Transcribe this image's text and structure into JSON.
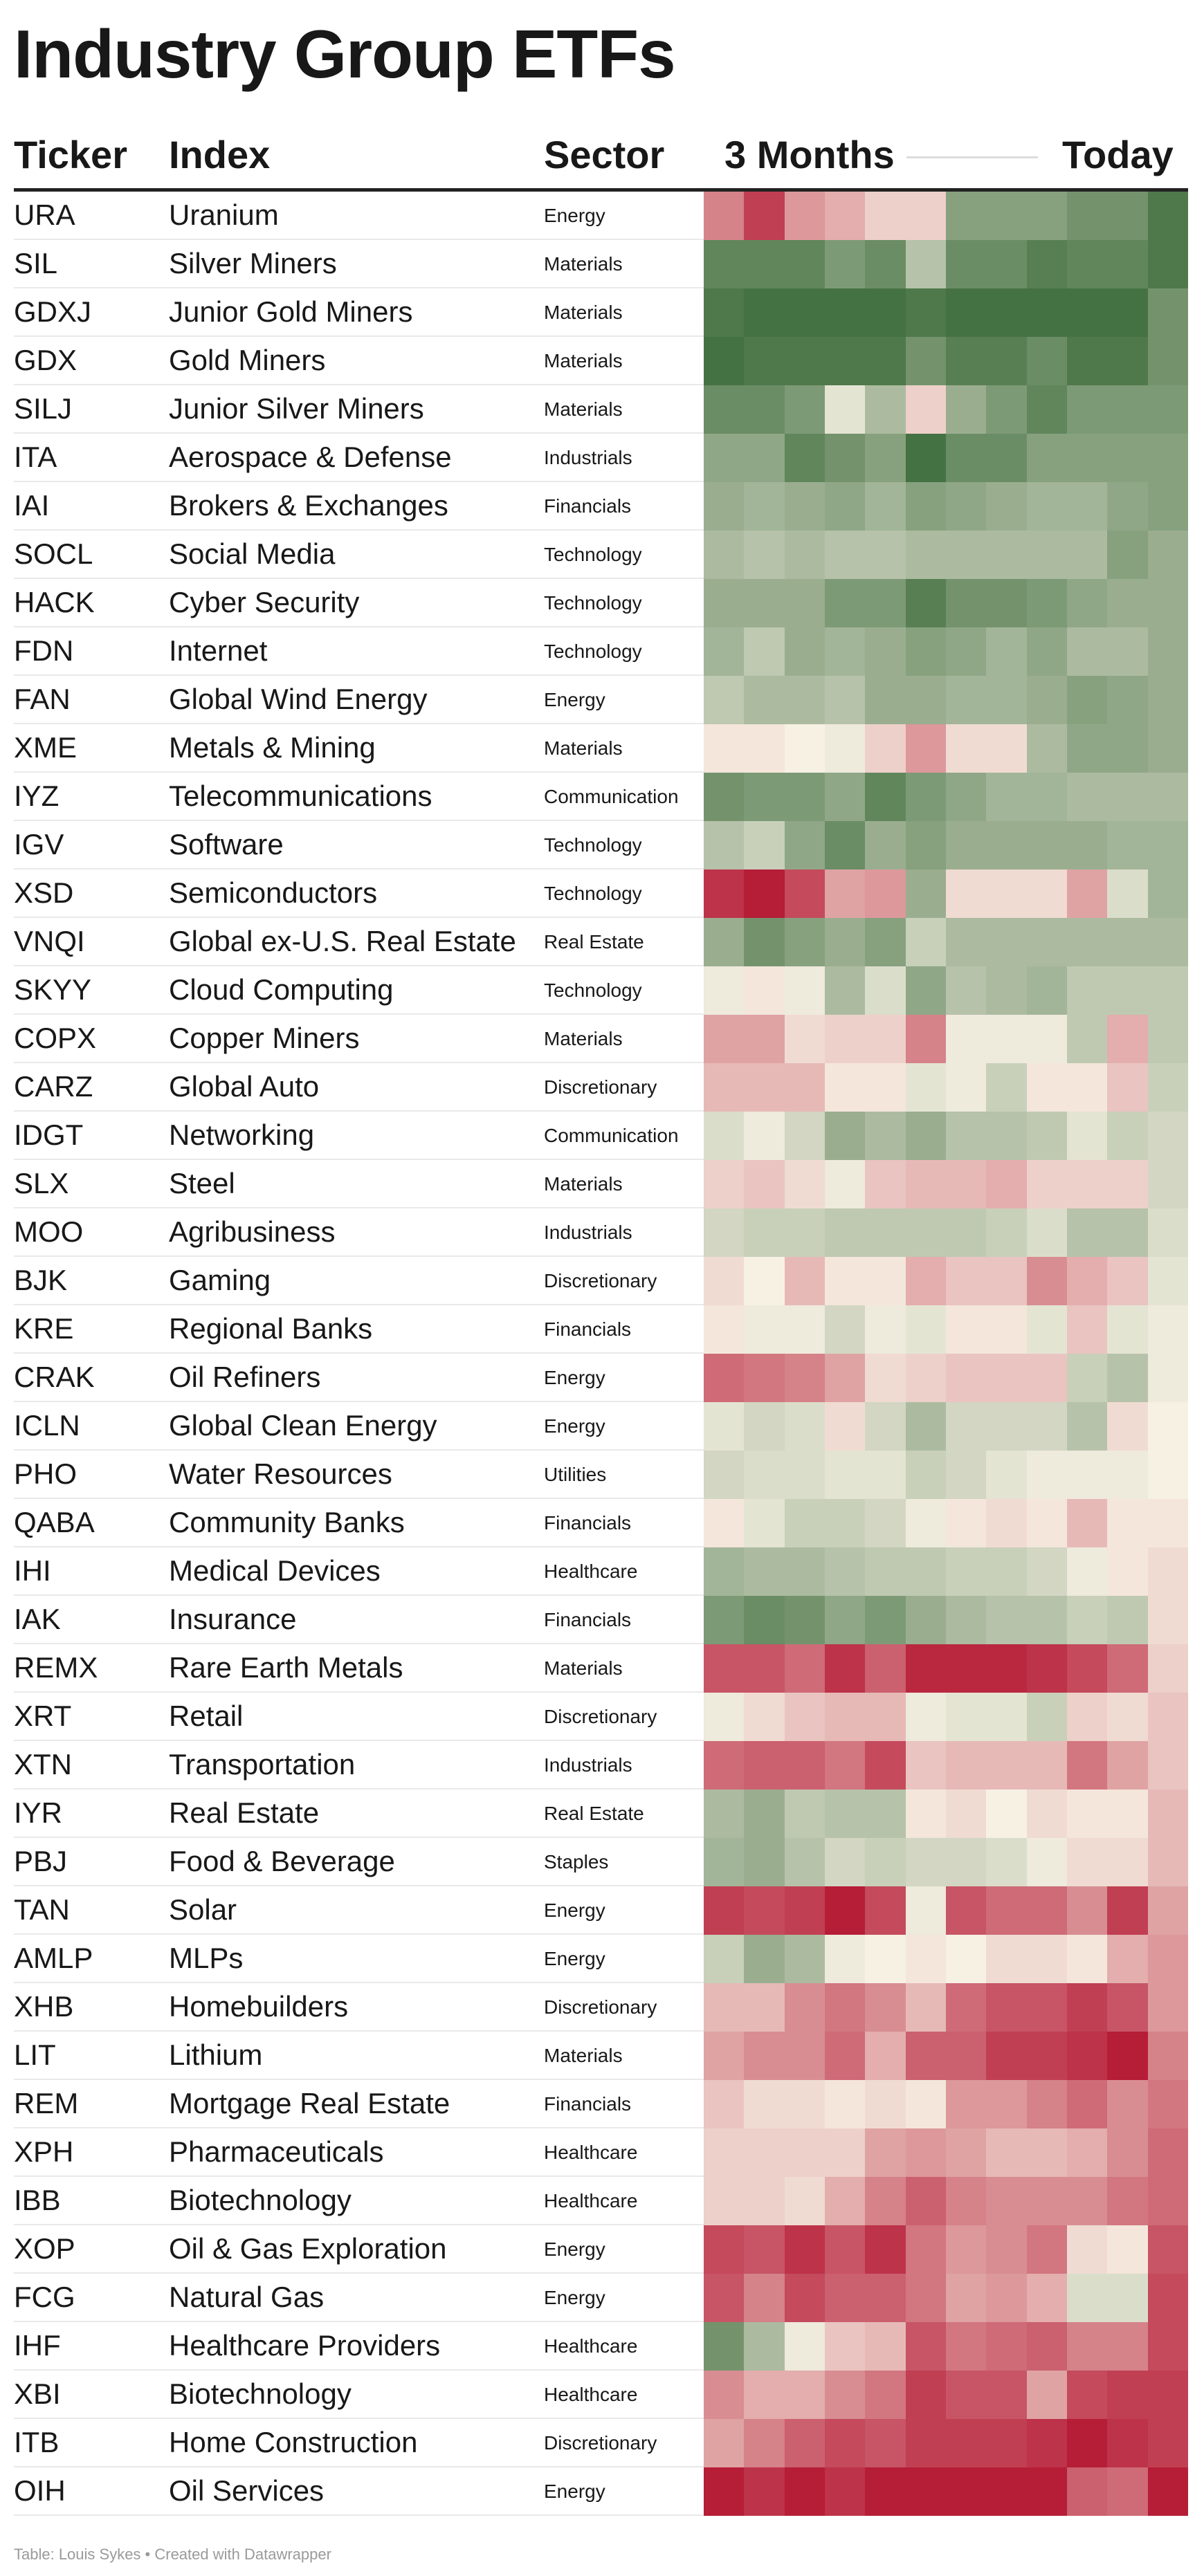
{
  "title": "Industry Group ETFs",
  "headers": {
    "ticker": "Ticker",
    "index": "Index",
    "sector": "Sector",
    "start": "3 Months",
    "end": "Today"
  },
  "footer": "Table: Louis Sykes • Created with Datawrapper",
  "color_scale": {
    "red": "#b3122e",
    "neutral": "#f7f1e4",
    "green": "#3c6b3a"
  },
  "chart_data": {
    "type": "heatmap",
    "columns_note": "12 periods from 3 Months ago to Today; values are relative-strength scores from -100 (deep red) to 100 (deep green)",
    "rows": [
      {
        "ticker": "URA",
        "index": "Uranium",
        "sector": "Energy",
        "values": [
          -50,
          -80,
          -40,
          -30,
          -15,
          -15,
          60,
          60,
          60,
          70,
          70,
          90
        ]
      },
      {
        "ticker": "SIL",
        "index": "Silver Miners",
        "sector": "Materials",
        "values": [
          80,
          80,
          80,
          65,
          75,
          35,
          75,
          75,
          85,
          80,
          80,
          90
        ]
      },
      {
        "ticker": "GDXJ",
        "index": "Junior Gold Miners",
        "sector": "Materials",
        "values": [
          90,
          95,
          95,
          95,
          95,
          90,
          95,
          95,
          95,
          95,
          95,
          70
        ]
      },
      {
        "ticker": "GDX",
        "index": "Gold Miners",
        "sector": "Materials",
        "values": [
          95,
          90,
          90,
          90,
          90,
          70,
          85,
          85,
          75,
          90,
          90,
          70
        ]
      },
      {
        "ticker": "SILJ",
        "index": "Junior Silver Miners",
        "sector": "Materials",
        "values": [
          75,
          75,
          65,
          10,
          40,
          -15,
          50,
          65,
          80,
          65,
          65,
          65
        ]
      },
      {
        "ticker": "ITA",
        "index": "Aerospace & Defense",
        "sector": "Industrials",
        "values": [
          55,
          55,
          80,
          70,
          60,
          95,
          75,
          75,
          60,
          60,
          60,
          60
        ]
      },
      {
        "ticker": "IAI",
        "index": "Brokers & Exchanges",
        "sector": "Financials",
        "values": [
          50,
          45,
          50,
          55,
          45,
          60,
          55,
          50,
          45,
          45,
          55,
          60
        ]
      },
      {
        "ticker": "SOCL",
        "index": "Social Media",
        "sector": "Technology",
        "values": [
          40,
          35,
          40,
          35,
          35,
          40,
          40,
          40,
          40,
          40,
          60,
          50
        ]
      },
      {
        "ticker": "HACK",
        "index": "Cyber Security",
        "sector": "Technology",
        "values": [
          50,
          50,
          50,
          65,
          65,
          85,
          70,
          70,
          65,
          55,
          50,
          50
        ]
      },
      {
        "ticker": "FDN",
        "index": "Internet",
        "sector": "Technology",
        "values": [
          45,
          30,
          50,
          45,
          50,
          60,
          55,
          45,
          55,
          40,
          40,
          50
        ]
      },
      {
        "ticker": "FAN",
        "index": "Global Wind Energy",
        "sector": "Energy",
        "values": [
          30,
          40,
          40,
          35,
          50,
          50,
          45,
          45,
          50,
          60,
          55,
          50
        ]
      },
      {
        "ticker": "XME",
        "index": "Metals & Mining",
        "sector": "Materials",
        "values": [
          -5,
          -5,
          0,
          5,
          -15,
          -40,
          -10,
          -10,
          40,
          55,
          55,
          50
        ]
      },
      {
        "ticker": "IYZ",
        "index": "Telecommunications",
        "sector": "Communication",
        "values": [
          70,
          65,
          65,
          55,
          80,
          65,
          55,
          45,
          45,
          40,
          40,
          40
        ]
      },
      {
        "ticker": "IGV",
        "index": "Software",
        "sector": "Technology",
        "values": [
          35,
          25,
          55,
          75,
          50,
          60,
          50,
          50,
          50,
          50,
          45,
          45
        ]
      },
      {
        "ticker": "XSD",
        "index": "Semiconductors",
        "sector": "Technology",
        "values": [
          -85,
          -95,
          -75,
          -35,
          -40,
          50,
          -10,
          -10,
          -10,
          -35,
          15,
          45
        ]
      },
      {
        "ticker": "VNQI",
        "index": "Global ex-U.S. Real Estate",
        "sector": "Real Estate",
        "values": [
          50,
          70,
          60,
          50,
          60,
          25,
          40,
          40,
          40,
          40,
          40,
          40
        ]
      },
      {
        "ticker": "SKYY",
        "index": "Cloud Computing",
        "sector": "Technology",
        "values": [
          5,
          -5,
          5,
          40,
          15,
          55,
          35,
          40,
          45,
          30,
          30,
          30
        ]
      },
      {
        "ticker": "COPX",
        "index": "Copper Miners",
        "sector": "Materials",
        "values": [
          -35,
          -35,
          -10,
          -15,
          -15,
          -50,
          5,
          5,
          5,
          30,
          -30,
          30
        ]
      },
      {
        "ticker": "CARZ",
        "index": "Global Auto",
        "sector": "Discretionary",
        "values": [
          -25,
          -25,
          -25,
          -5,
          -5,
          10,
          5,
          25,
          -5,
          -5,
          -20,
          25
        ]
      },
      {
        "ticker": "IDGT",
        "index": "Networking",
        "sector": "Communication",
        "values": [
          15,
          5,
          20,
          50,
          40,
          50,
          35,
          35,
          30,
          10,
          25,
          20
        ]
      },
      {
        "ticker": "SLX",
        "index": "Steel",
        "sector": "Materials",
        "values": [
          -15,
          -20,
          -10,
          5,
          -20,
          -25,
          -25,
          -30,
          -15,
          -15,
          -15,
          20
        ]
      },
      {
        "ticker": "MOO",
        "index": "Agribusiness",
        "sector": "Industrials",
        "values": [
          20,
          25,
          25,
          30,
          30,
          30,
          30,
          25,
          15,
          35,
          35,
          15
        ]
      },
      {
        "ticker": "BJK",
        "index": "Gaming",
        "sector": "Discretionary",
        "values": [
          -10,
          0,
          -25,
          -5,
          -5,
          -30,
          -20,
          -20,
          -45,
          -30,
          -20,
          10
        ]
      },
      {
        "ticker": "KRE",
        "index": "Regional Banks",
        "sector": "Financials",
        "values": [
          -5,
          5,
          5,
          20,
          5,
          10,
          -5,
          -5,
          10,
          -20,
          10,
          5
        ]
      },
      {
        "ticker": "CRAK",
        "index": "Oil Refiners",
        "sector": "Energy",
        "values": [
          -60,
          -55,
          -50,
          -35,
          -10,
          -15,
          -20,
          -20,
          -20,
          25,
          35,
          5
        ]
      },
      {
        "ticker": "ICLN",
        "index": "Global Clean Energy",
        "sector": "Energy",
        "values": [
          10,
          20,
          15,
          -10,
          20,
          40,
          20,
          20,
          20,
          35,
          -10,
          0
        ]
      },
      {
        "ticker": "PHO",
        "index": "Water Resources",
        "sector": "Utilities",
        "values": [
          20,
          15,
          15,
          10,
          10,
          25,
          20,
          10,
          5,
          5,
          5,
          0
        ]
      },
      {
        "ticker": "QABA",
        "index": "Community Banks",
        "sector": "Financials",
        "values": [
          -5,
          10,
          25,
          25,
          20,
          5,
          -5,
          -10,
          -5,
          -25,
          -5,
          -5
        ]
      },
      {
        "ticker": "IHI",
        "index": "Medical Devices",
        "sector": "Healthcare",
        "values": [
          45,
          40,
          40,
          35,
          30,
          30,
          25,
          25,
          20,
          5,
          -5,
          -10
        ]
      },
      {
        "ticker": "IAK",
        "index": "Insurance",
        "sector": "Financials",
        "values": [
          65,
          75,
          70,
          55,
          65,
          50,
          40,
          35,
          35,
          25,
          30,
          -10
        ]
      },
      {
        "ticker": "REMX",
        "index": "Rare Earth Metals",
        "sector": "Materials",
        "values": [
          -70,
          -70,
          -60,
          -85,
          -65,
          -90,
          -90,
          -90,
          -85,
          -75,
          -60,
          -15
        ]
      },
      {
        "ticker": "XRT",
        "index": "Retail",
        "sector": "Discretionary",
        "values": [
          5,
          -10,
          -20,
          -25,
          -25,
          5,
          10,
          10,
          25,
          -15,
          -10,
          -20
        ]
      },
      {
        "ticker": "XTN",
        "index": "Transportation",
        "sector": "Industrials",
        "values": [
          -60,
          -65,
          -65,
          -55,
          -75,
          -20,
          -25,
          -25,
          -25,
          -55,
          -35,
          -20
        ]
      },
      {
        "ticker": "IYR",
        "index": "Real Estate",
        "sector": "Real Estate",
        "values": [
          40,
          50,
          30,
          35,
          35,
          -5,
          -10,
          0,
          -10,
          -5,
          -5,
          -25
        ]
      },
      {
        "ticker": "PBJ",
        "index": "Food & Beverage",
        "sector": "Staples",
        "values": [
          45,
          50,
          35,
          20,
          25,
          20,
          20,
          15,
          5,
          -10,
          -10,
          -25
        ]
      },
      {
        "ticker": "TAN",
        "index": "Solar",
        "sector": "Energy",
        "values": [
          -80,
          -75,
          -80,
          -95,
          -75,
          5,
          -70,
          -60,
          -60,
          -45,
          -80,
          -35
        ]
      },
      {
        "ticker": "AMLP",
        "index": "MLPs",
        "sector": "Energy",
        "values": [
          25,
          50,
          40,
          5,
          0,
          -5,
          0,
          -10,
          -10,
          -5,
          -30,
          -40
        ]
      },
      {
        "ticker": "XHB",
        "index": "Homebuilders",
        "sector": "Discretionary",
        "values": [
          -25,
          -25,
          -45,
          -55,
          -45,
          -25,
          -60,
          -70,
          -70,
          -80,
          -70,
          -40
        ]
      },
      {
        "ticker": "LIT",
        "index": "Lithium",
        "sector": "Materials",
        "values": [
          -35,
          -45,
          -45,
          -60,
          -30,
          -65,
          -65,
          -80,
          -80,
          -85,
          -95,
          -50
        ]
      },
      {
        "ticker": "REM",
        "index": "Mortgage Real Estate",
        "sector": "Financials",
        "values": [
          -20,
          -10,
          -10,
          -5,
          -10,
          -5,
          -40,
          -40,
          -50,
          -60,
          -45,
          -55
        ]
      },
      {
        "ticker": "XPH",
        "index": "Pharmaceuticals",
        "sector": "Healthcare",
        "values": [
          -15,
          -15,
          -15,
          -15,
          -35,
          -40,
          -35,
          -25,
          -25,
          -30,
          -45,
          -60
        ]
      },
      {
        "ticker": "IBB",
        "index": "Biotechnology",
        "sector": "Healthcare",
        "values": [
          -15,
          -15,
          -10,
          -30,
          -50,
          -65,
          -50,
          -45,
          -45,
          -45,
          -55,
          -60
        ]
      },
      {
        "ticker": "XOP",
        "index": "Oil & Gas Exploration",
        "sector": "Energy",
        "values": [
          -75,
          -70,
          -85,
          -70,
          -85,
          -55,
          -40,
          -45,
          -55,
          -10,
          -5,
          -70
        ]
      },
      {
        "ticker": "FCG",
        "index": "Natural Gas",
        "sector": "Energy",
        "values": [
          -70,
          -50,
          -75,
          -65,
          -65,
          -55,
          -35,
          -40,
          -30,
          15,
          15,
          -75
        ]
      },
      {
        "ticker": "IHF",
        "index": "Healthcare Providers",
        "sector": "Healthcare",
        "values": [
          70,
          40,
          5,
          -20,
          -25,
          -70,
          -55,
          -60,
          -65,
          -50,
          -50,
          -75
        ]
      },
      {
        "ticker": "XBI",
        "index": "Biotechnology",
        "sector": "Healthcare",
        "values": [
          -45,
          -30,
          -30,
          -45,
          -55,
          -80,
          -70,
          -70,
          -35,
          -75,
          -80,
          -80
        ]
      },
      {
        "ticker": "ITB",
        "index": "Home Construction",
        "sector": "Discretionary",
        "values": [
          -35,
          -50,
          -65,
          -75,
          -70,
          -80,
          -80,
          -80,
          -85,
          -95,
          -85,
          -80
        ]
      },
      {
        "ticker": "OIH",
        "index": "Oil Services",
        "sector": "Energy",
        "values": [
          -95,
          -85,
          -95,
          -85,
          -95,
          -95,
          -95,
          -95,
          -95,
          -65,
          -60,
          -95
        ]
      }
    ]
  }
}
